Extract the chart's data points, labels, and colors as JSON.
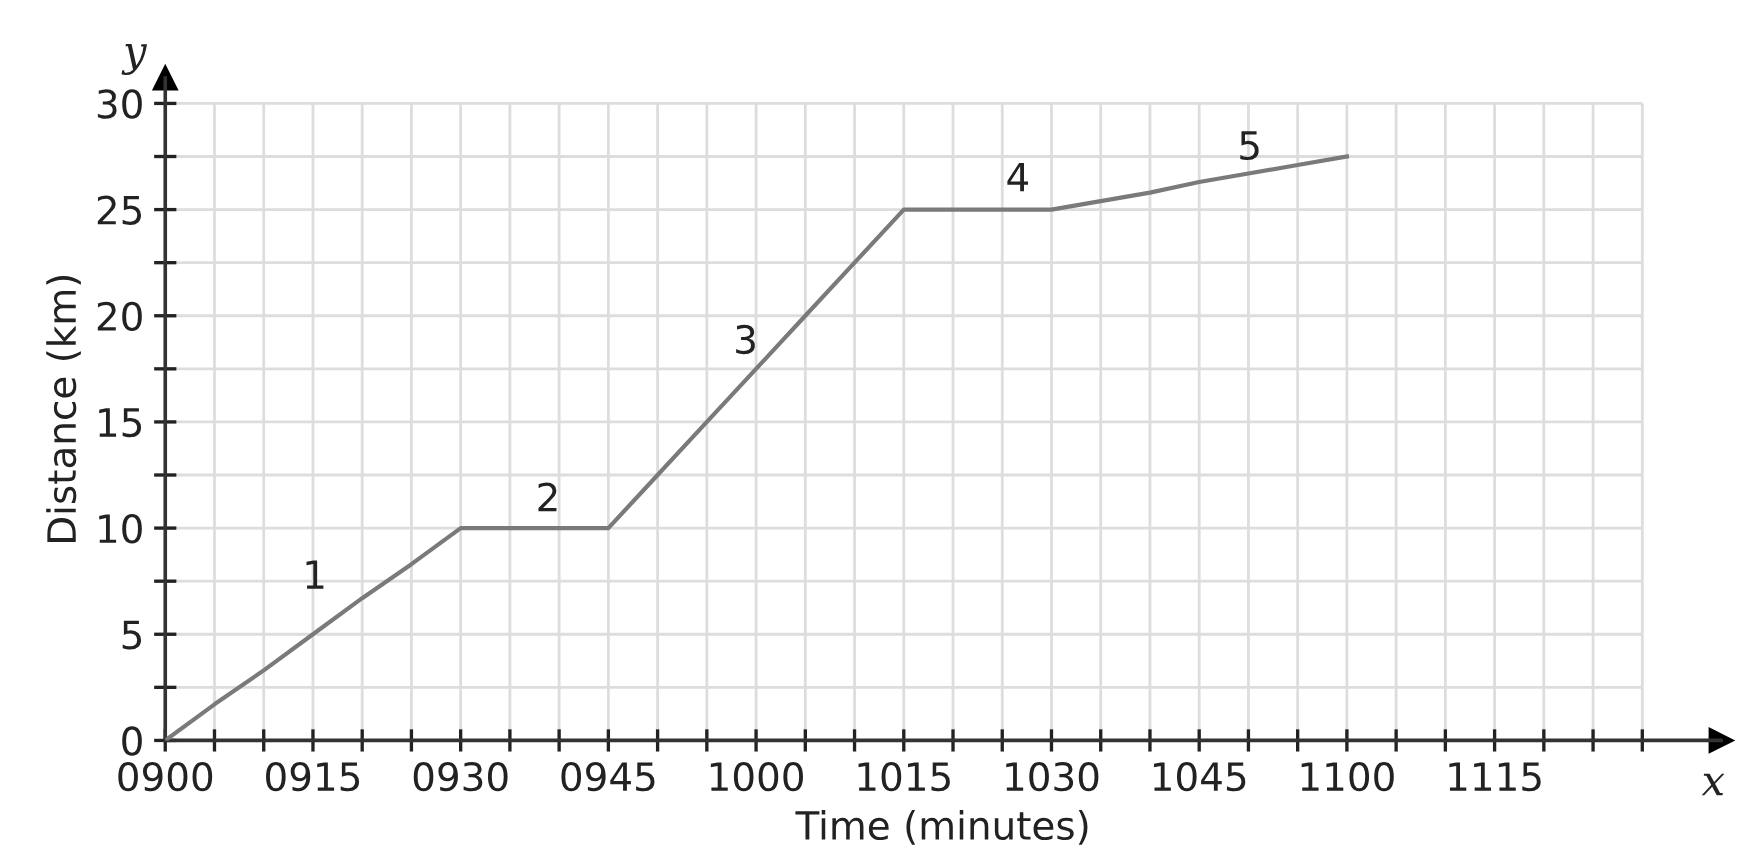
{
  "chart_data": {
    "type": "line",
    "xlabel": "Time (minutes)",
    "ylabel": "Distance (km)",
    "categories": [
      "0900",
      null,
      null,
      "0915",
      null,
      null,
      "0930",
      null,
      null,
      "0945",
      null,
      null,
      "1000",
      null,
      null,
      "1015",
      null,
      null,
      "1030",
      null,
      null,
      "1045",
      null,
      null,
      "1100",
      null,
      null,
      "1115",
      null,
      null,
      null
    ],
    "series": [
      {
        "color": "#7a7a7a",
        "values": [
          0,
          1.7,
          3.3,
          5,
          6.7,
          8.3,
          10,
          10,
          10,
          10,
          12.5,
          15,
          17.5,
          20,
          22.5,
          25,
          25,
          25,
          25,
          25.4,
          25.8,
          26.3,
          26.7,
          27.1,
          27.5,
          null,
          null,
          null,
          null,
          null,
          null
        ]
      }
    ],
    "ylim": [
      0,
      31.2
    ],
    "yticks": [
      0,
      {
        "value": 2.5,
        "label": null
      },
      5,
      {
        "value": 7.5,
        "label": null
      },
      10,
      {
        "value": 12.5,
        "label": null
      },
      15,
      {
        "value": 17.5,
        "label": null
      },
      20,
      {
        "value": 22.5,
        "label": null
      },
      25,
      {
        "value": 27.5,
        "label": null
      },
      30
    ],
    "grid": true,
    "marker": "none",
    "line_style": "solid",
    "annotations": [
      "y",
      "x",
      "1",
      "2",
      "3",
      "4",
      "5"
    ]
  }
}
